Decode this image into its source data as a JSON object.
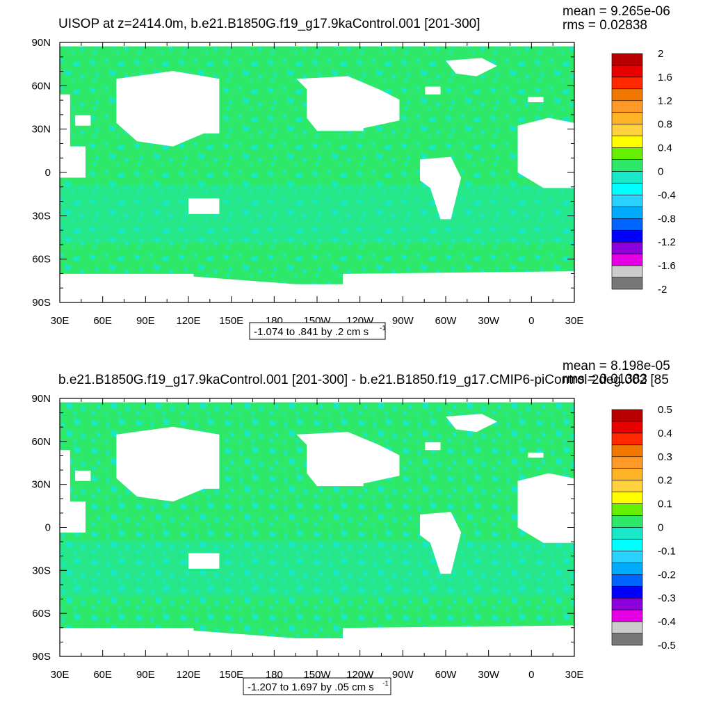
{
  "chart_data": [
    {
      "type": "heatmap",
      "title": "UISOP at z=2414.0m, b.e21.B1850G.f19_g17.9kaControl.001 [201-300]",
      "stats": {
        "mean": "mean = 9.265e-06",
        "rms": "rms = 0.02838"
      },
      "x_tick_labels": [
        "30E",
        "60E",
        "90E",
        "120E",
        "150E",
        "180",
        "150W",
        "120W",
        "90W",
        "60W",
        "30W",
        "0",
        "30E"
      ],
      "y_tick_labels": [
        "90N",
        "60N",
        "30N",
        "0",
        "30S",
        "60S",
        "90S"
      ],
      "lon_range": [
        30,
        390
      ],
      "lat_range": [
        -90,
        90
      ],
      "colorbar_labels": [
        "2",
        "1.6",
        "1.2",
        "0.8",
        "0.4",
        "0",
        "-0.4",
        "-0.8",
        "-1.2",
        "-1.6",
        "-2"
      ],
      "range_text": "-1.074 to .841 by .2 cm s",
      "range_sup": "-1"
    },
    {
      "type": "heatmap",
      "title": "b.e21.B1850G.f19_g17.9kaControl.001 [201-300] - b.e21.B1850.f19_g17.CMIP6-piControl-2deg.002 [85",
      "stats": {
        "mean": "mean = 8.198e-05",
        "rms": "rms = 0.01383"
      },
      "x_tick_labels": [
        "30E",
        "60E",
        "90E",
        "120E",
        "150E",
        "180",
        "150W",
        "120W",
        "90W",
        "60W",
        "30W",
        "0",
        "30E"
      ],
      "y_tick_labels": [
        "90N",
        "60N",
        "30N",
        "0",
        "30S",
        "60S",
        "90S"
      ],
      "lon_range": [
        30,
        390
      ],
      "lat_range": [
        -90,
        90
      ],
      "colorbar_labels": [
        "0.5",
        "0.4",
        "0.3",
        "0.2",
        "0.1",
        "0",
        "-0.1",
        "-0.2",
        "-0.3",
        "-0.4",
        "-0.5"
      ],
      "range_text": "-1.207 to 1.697 by .05 cm s",
      "range_sup": "-1"
    }
  ],
  "colors": {
    "ocean_dominant": "#2ee86a",
    "ocean_negative": "#18e8c8",
    "land": "#ffffff",
    "colorbar_top_to_bottom": [
      "#b80000",
      "#e80000",
      "#ff2800",
      "#f07800",
      "#ff9a28",
      "#ffb428",
      "#ffd23c",
      "#ffff00",
      "#64f000",
      "#2ee86a",
      "#18e8c8",
      "#00ffff",
      "#28d2ff",
      "#00aaff",
      "#0064ff",
      "#0000ff",
      "#8c00dc",
      "#e600e6",
      "#cccccc",
      "#777777"
    ]
  }
}
